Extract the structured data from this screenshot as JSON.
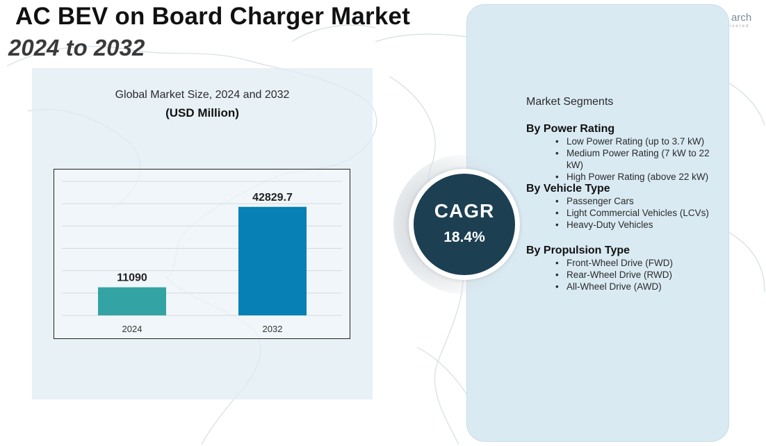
{
  "title": "AC BEV on Board Charger Market",
  "subtitle": "2024 to 2032",
  "logo": {
    "text": "arch",
    "tagline": "ivered"
  },
  "colors": {
    "bar_2024": "#33a3a4",
    "bar_2032": "#0680b5",
    "cagr_circle": "#1c3f52",
    "right_panel": "#d9eaf3"
  },
  "chart_data": {
    "type": "bar",
    "title": "Global Market Size, 2024 and 2032",
    "unit": "(USD Million)",
    "categories": [
      "2024",
      "2032"
    ],
    "values": [
      11090,
      42829.7
    ],
    "value_labels": [
      "11090",
      "42829.7"
    ],
    "ylim": [
      0,
      54000
    ],
    "grid": true,
    "xlabel": "",
    "ylabel": ""
  },
  "cagr": {
    "label": "CAGR",
    "value": "18.4%"
  },
  "segments": {
    "heading": "Market Segments",
    "groups": [
      {
        "title": "By Power Rating",
        "items": [
          "Low Power Rating (up to 3.7 kW)",
          "Medium Power Rating (7 kW to 22 kW)",
          "High Power Rating (above 22 kW)"
        ]
      },
      {
        "title": "By Vehicle Type",
        "items": [
          "Passenger Cars",
          "Light Commercial Vehicles (LCVs)",
          "Heavy-Duty Vehicles"
        ]
      },
      {
        "title": "By Propulsion Type",
        "items": [
          "Front-Wheel Drive (FWD)",
          "Rear-Wheel Drive (RWD)",
          "All-Wheel Drive (AWD)"
        ]
      }
    ]
  }
}
